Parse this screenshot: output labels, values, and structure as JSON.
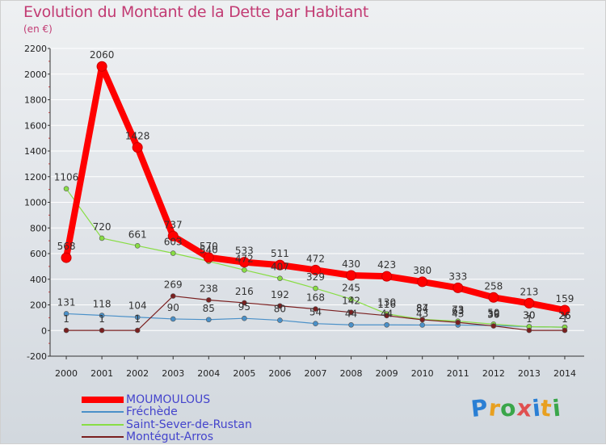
{
  "chart_data": {
    "type": "line",
    "title": "Evolution du Montant de la Dette par Habitant",
    "subtitle": "(en €)",
    "x": [
      "2000",
      "2001",
      "2002",
      "2003",
      "2004",
      "2005",
      "2006",
      "2007",
      "2008",
      "2009",
      "2010",
      "2011",
      "2012",
      "2013",
      "2014"
    ],
    "ylim": [
      -200,
      2200
    ],
    "yticks": [
      -200,
      0,
      200,
      400,
      600,
      800,
      1000,
      1200,
      1400,
      1600,
      1800,
      2000,
      2200
    ],
    "series": [
      {
        "name": "MOUMOULOUS",
        "color": "#ff0000",
        "values": [
          568,
          2060,
          1428,
          737,
          570,
          533,
          511,
          472,
          430,
          423,
          380,
          333,
          258,
          213,
          159
        ],
        "labels": [
          "568",
          "2060",
          "1428",
          "737",
          "570",
          "533",
          "511",
          "472",
          "430",
          "423",
          "380",
          "333",
          "258",
          "213",
          "159"
        ]
      },
      {
        "name": "Fréchède",
        "color": "#4a90c8",
        "values": [
          131,
          118,
          104,
          90,
          85,
          95,
          80,
          54,
          44,
          44,
          43,
          43,
          39,
          30,
          26
        ],
        "labels": [
          "131",
          "118",
          "104",
          "90",
          "85",
          "95",
          "80",
          "54",
          "44",
          "44",
          "43",
          "43",
          "39",
          "30",
          "26"
        ]
      },
      {
        "name": "Saint-Sever-de-Rustan",
        "color": "#88dd44",
        "values": [
          1106,
          720,
          661,
          603,
          540,
          472,
          407,
          329,
          245,
          130,
          87,
          73,
          50,
          30,
          26
        ],
        "labels": [
          "1106",
          "720",
          "661",
          "603",
          "540",
          "472",
          "407",
          "329",
          "245",
          "130",
          "87",
          "73",
          "50",
          "30",
          "26"
        ]
      },
      {
        "name": "Montégut-Arros",
        "color": "#7a1f1f",
        "values": [
          1,
          1,
          1,
          269,
          238,
          216,
          192,
          168,
          142,
          116,
          84,
          63,
          36,
          1,
          1
        ],
        "labels": [
          "1",
          "1",
          "1",
          "269",
          "238",
          "216",
          "192",
          "168",
          "142",
          "116",
          "84",
          "63",
          "36",
          "1",
          "1"
        ]
      }
    ]
  },
  "logo": {
    "letters": [
      "P",
      "r",
      "o",
      "x",
      "i",
      "t",
      "i"
    ],
    "colors": [
      "#2a7fd4",
      "#e8a020",
      "#3aa64a",
      "#e05050",
      "#2a7fd4",
      "#e8a020",
      "#3aa64a"
    ]
  }
}
